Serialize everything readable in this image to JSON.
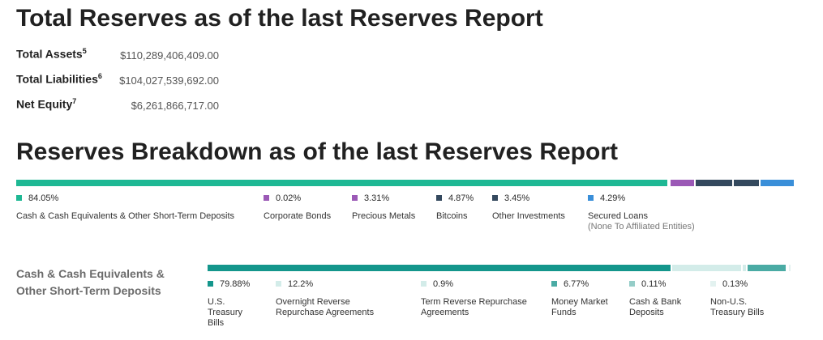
{
  "total_reserves": {
    "title": "Total Reserves as of the last Reserves Report",
    "rows": [
      {
        "label": "Total Assets",
        "sup": "5",
        "value": "$110,289,406,409.00"
      },
      {
        "label": "Total Liabilities",
        "sup": "6",
        "value": "$104,027,539,692.00"
      },
      {
        "label": "Net Equity",
        "sup": "7",
        "value": "$6,261,866,717.00"
      }
    ]
  },
  "breakdown": {
    "title": "Reserves Breakdown as of the last Reserves Report",
    "items": [
      {
        "pct": "84.05%",
        "value": 84.05,
        "color": "#1eb894",
        "label": "Cash & Cash Equivalents & Other Short-Term Deposits",
        "sublabel": ""
      },
      {
        "pct": "0.02%",
        "value": 0.02,
        "color": "#9b59b6",
        "label": "Corporate Bonds",
        "sublabel": ""
      },
      {
        "pct": "3.31%",
        "value": 3.31,
        "color": "#9b59b6",
        "label": "Precious Metals",
        "sublabel": ""
      },
      {
        "pct": "4.87%",
        "value": 4.87,
        "color": "#34495e",
        "label": "Bitcoins",
        "sublabel": ""
      },
      {
        "pct": "3.45%",
        "value": 3.45,
        "color": "#34495e",
        "label": "Other Investments",
        "sublabel": ""
      },
      {
        "pct": "4.29%",
        "value": 4.29,
        "color": "#3a8fd9",
        "label": "Secured Loans",
        "sublabel": "(None To Affiliated Entities)"
      }
    ]
  },
  "cash": {
    "section_label_line1": "Cash & Cash Equivalents &",
    "section_label_line2": "Other Short-Term Deposits",
    "items": [
      {
        "pct": "79.88%",
        "value": 79.88,
        "color": "#14968c",
        "label_lines": [
          "U.S.",
          "Treasury",
          "Bills"
        ]
      },
      {
        "pct": "12.2%",
        "value": 12.2,
        "color": "#d3ece9",
        "label_lines": [
          "Overnight Reverse",
          "Repurchase Agreements"
        ]
      },
      {
        "pct": "0.9%",
        "value": 0.9,
        "color": "#d3ece9",
        "label_lines": [
          "Term Reverse Repurchase",
          "Agreements"
        ]
      },
      {
        "pct": "6.77%",
        "value": 6.77,
        "color": "#4aaba4",
        "label_lines": [
          "Money Market",
          "Funds"
        ]
      },
      {
        "pct": "0.11%",
        "value": 0.11,
        "color": "#95cdc8",
        "label_lines": [
          "Cash & Bank",
          "Deposits"
        ]
      },
      {
        "pct": "0.13%",
        "value": 0.13,
        "color": "#e3f2f0",
        "label_lines": [
          "Non-U.S.",
          "Treasury Bills"
        ]
      }
    ]
  }
}
